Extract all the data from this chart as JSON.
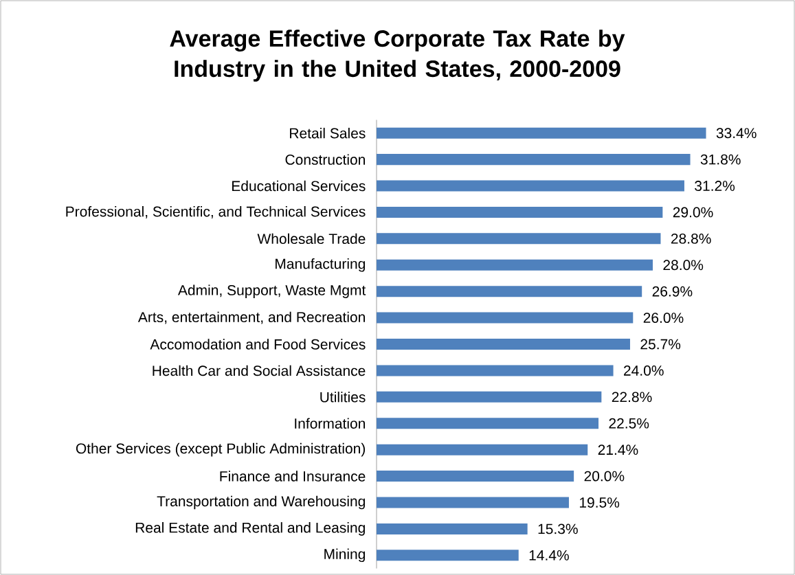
{
  "chart_data": {
    "type": "bar",
    "orientation": "horizontal",
    "title": "Average Effective Corporate Tax Rate by Industry in the United States, 2000-2009",
    "categories": [
      "Retail Sales",
      "Construction",
      "Educational Services",
      "Professional, Scientific, and Technical Services",
      "Wholesale Trade",
      "Manufacturing",
      "Admin, Support, Waste Mgmt",
      "Arts, entertainment, and Recreation",
      "Accomodation and Food Services",
      "Health Car and Social Assistance",
      "Utilities",
      "Information",
      "Other Services (except Public Administration)",
      "Finance and Insurance",
      "Transportation and Warehousing",
      "Real Estate and Rental and Leasing",
      "Mining"
    ],
    "values": [
      33.4,
      31.8,
      31.2,
      29.0,
      28.8,
      28.0,
      26.9,
      26.0,
      25.7,
      24.0,
      22.8,
      22.5,
      21.4,
      20.0,
      19.5,
      15.3,
      14.4
    ],
    "value_labels": [
      "33.4%",
      "31.8%",
      "31.2%",
      "29.0%",
      "28.8%",
      "28.0%",
      "26.9%",
      "26.0%",
      "25.7%",
      "24.0%",
      "22.8%",
      "22.5%",
      "21.4%",
      "20.0%",
      "19.5%",
      "15.3%",
      "14.4%"
    ],
    "color": "#4f81bd",
    "tick_labels": "y"
  }
}
